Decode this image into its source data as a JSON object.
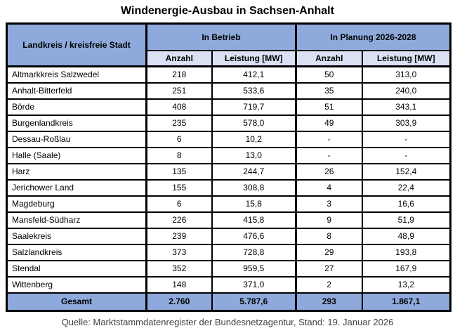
{
  "title": "Windenergie-Ausbau in Sachsen-Anhalt",
  "source_note": "Quelle: Marktstammdatenregister der Bundesnetzagentur, Stand: 19. Januar 2026",
  "colors": {
    "header_blue": "#8EA9DB",
    "subheader_blue": "#D9E1F2",
    "total_row_blue": "#8EA9DB",
    "border": "#000000",
    "source_text": "#404040"
  },
  "table": {
    "corner_header": "Landkreis / kreisfreie Stadt",
    "groups": [
      "In Betrieb",
      "In Planung 2026-2028"
    ],
    "sub_headers": [
      "Anzahl",
      "Leistung [MW]",
      "Anzahl",
      "Leistung [MW]"
    ],
    "rows": [
      {
        "name": "Altmarkkreis Salzwedel",
        "cells": [
          "218",
          "412,1",
          "50",
          "313,0"
        ]
      },
      {
        "name": "Anhalt-Bitterfeld",
        "cells": [
          "251",
          "533,6",
          "35",
          "240,0"
        ]
      },
      {
        "name": "Börde",
        "cells": [
          "408",
          "719,7",
          "51",
          "343,1"
        ]
      },
      {
        "name": "Burgenlandkreis",
        "cells": [
          "235",
          "578,0",
          "49",
          "303,9"
        ]
      },
      {
        "name": "Dessau-Roßlau",
        "cells": [
          "6",
          "10,2",
          "-",
          "-"
        ]
      },
      {
        "name": "Halle (Saale)",
        "cells": [
          "8",
          "13,0",
          "-",
          "-"
        ]
      },
      {
        "name": "Harz",
        "cells": [
          "135",
          "244,7",
          "26",
          "152,4"
        ]
      },
      {
        "name": "Jerichower Land",
        "cells": [
          "155",
          "308,8",
          "4",
          "22,4"
        ]
      },
      {
        "name": "Magdeburg",
        "cells": [
          "6",
          "15,8",
          "3",
          "16,6"
        ]
      },
      {
        "name": "Mansfeld-Südharz",
        "cells": [
          "226",
          "415,8",
          "9",
          "51,9"
        ]
      },
      {
        "name": "Saalekreis",
        "cells": [
          "239",
          "476,6",
          "8",
          "48,9"
        ]
      },
      {
        "name": "Salzlandkreis",
        "cells": [
          "373",
          "728,8",
          "29",
          "193,8"
        ]
      },
      {
        "name": "Stendal",
        "cells": [
          "352",
          "959,5",
          "27",
          "167,9"
        ]
      },
      {
        "name": "Wittenberg",
        "cells": [
          "148",
          "371,0",
          "2",
          "13,2"
        ]
      }
    ],
    "total": {
      "label": "Gesamt",
      "cells": [
        "2.760",
        "5.787,6",
        "293",
        "1.867,1"
      ]
    }
  },
  "chart_data": {
    "type": "table",
    "title": "Windenergie-Ausbau in Sachsen-Anhalt",
    "column_groups": [
      "In Betrieb",
      "In Planung 2026-2028"
    ],
    "columns": [
      "Landkreis / kreisfreie Stadt",
      "In Betrieb: Anzahl",
      "In Betrieb: Leistung [MW]",
      "In Planung 2026-2028: Anzahl",
      "In Planung 2026-2028: Leistung [MW]"
    ],
    "rows": [
      [
        "Altmarkkreis Salzwedel",
        218,
        412.1,
        50,
        313.0
      ],
      [
        "Anhalt-Bitterfeld",
        251,
        533.6,
        35,
        240.0
      ],
      [
        "Börde",
        408,
        719.7,
        51,
        343.1
      ],
      [
        "Burgenlandkreis",
        235,
        578.0,
        49,
        303.9
      ],
      [
        "Dessau-Roßlau",
        6,
        10.2,
        null,
        null
      ],
      [
        "Halle (Saale)",
        8,
        13.0,
        null,
        null
      ],
      [
        "Harz",
        135,
        244.7,
        26,
        152.4
      ],
      [
        "Jerichower Land",
        155,
        308.8,
        4,
        22.4
      ],
      [
        "Magdeburg",
        6,
        15.8,
        3,
        16.6
      ],
      [
        "Mansfeld-Südharz",
        226,
        415.8,
        9,
        51.9
      ],
      [
        "Saalekreis",
        239,
        476.6,
        8,
        48.9
      ],
      [
        "Salzlandkreis",
        373,
        728.8,
        29,
        193.8
      ],
      [
        "Stendal",
        352,
        959.5,
        27,
        167.9
      ],
      [
        "Wittenberg",
        148,
        371.0,
        2,
        13.2
      ]
    ],
    "total_row": [
      "Gesamt",
      2760,
      5787.6,
      293,
      1867.1
    ],
    "source": "Quelle: Marktstammdatenregister der Bundesnetzagentur, Stand: 19. Januar 2026"
  }
}
